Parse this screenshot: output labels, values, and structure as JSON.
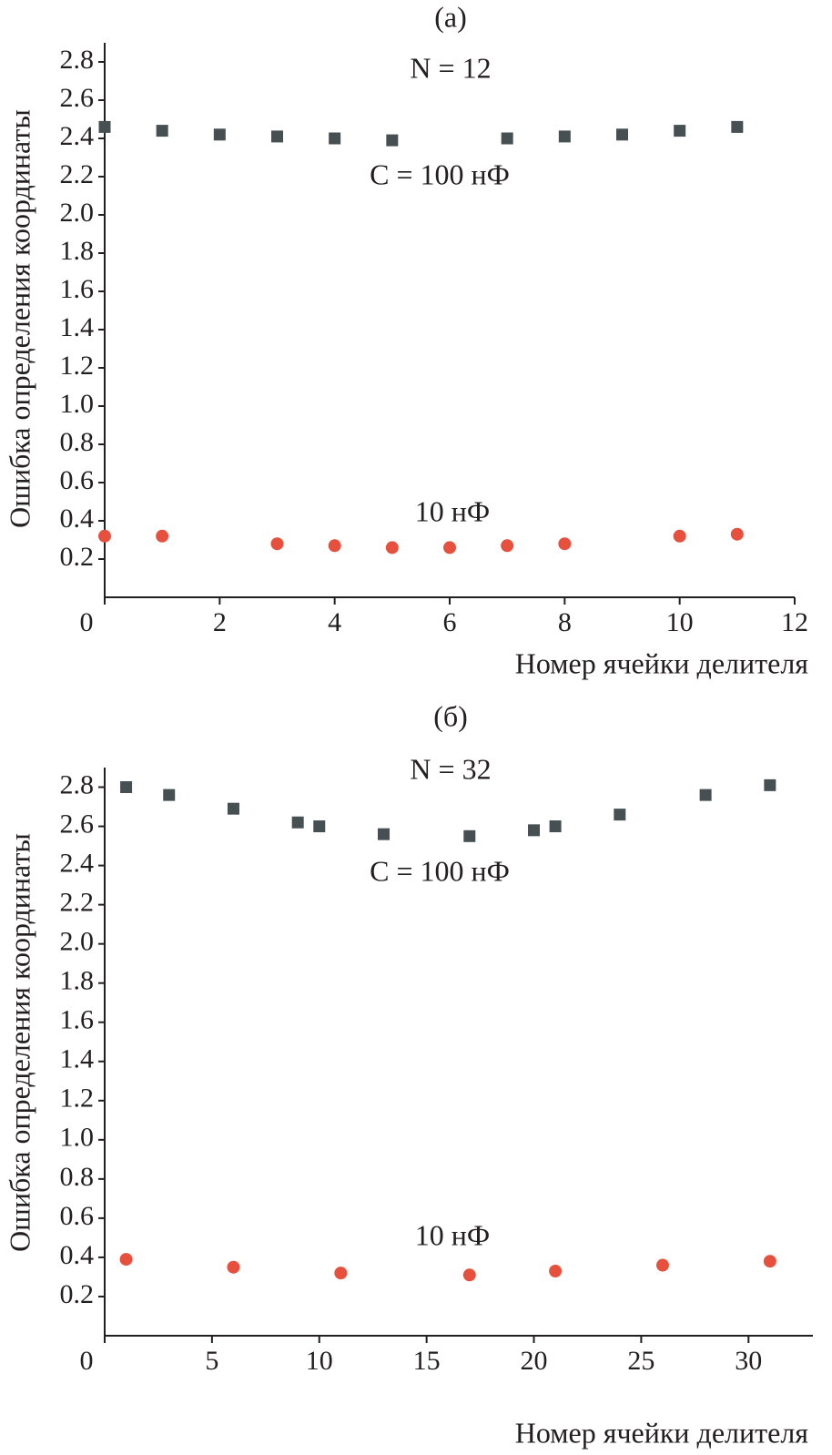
{
  "chart_data": [
    {
      "type": "scatter",
      "title": "(а)",
      "annotations": [
        "N = 12"
      ],
      "x_label": "Номер ячейки делителя",
      "y_label": "Ошибка определения координаты",
      "xlim": [
        0,
        12
      ],
      "xticks": [
        0,
        2,
        4,
        6,
        8,
        10,
        12
      ],
      "ylim": [
        0,
        2.9
      ],
      "yticks": [
        0.2,
        0.4,
        0.6,
        0.8,
        {
          "value": 1,
          "label": "1.0"
        },
        1.2,
        1.4,
        1.6,
        1.8,
        {
          "value": 2,
          "label": "2.0"
        },
        2.2,
        2.4,
        2.6,
        2.8
      ],
      "series": [
        {
          "name": "C = 100 нФ",
          "color": "#465052",
          "marker": "square",
          "x": [
            0,
            1,
            2,
            3,
            4,
            5,
            7,
            8,
            9,
            10,
            11
          ],
          "values": [
            2.46,
            2.44,
            2.42,
            2.41,
            2.4,
            2.39,
            2.4,
            2.41,
            2.42,
            2.44,
            2.46
          ]
        },
        {
          "name": "10 нФ",
          "color": "#e8503e",
          "marker": "circle",
          "x": [
            0,
            1,
            3,
            4,
            5,
            6,
            7,
            8,
            10,
            11
          ],
          "values": [
            0.32,
            0.32,
            0.28,
            0.27,
            0.26,
            0.26,
            0.27,
            0.28,
            0.32,
            0.33
          ]
        }
      ]
    },
    {
      "type": "scatter",
      "title": "(б)",
      "annotations": [
        "N = 32"
      ],
      "x_label": "Номер ячейки делителя",
      "y_label": "Ошибка определения координаты",
      "xlim": [
        0,
        33
      ],
      "xticks": [
        0,
        5,
        10,
        15,
        20,
        25,
        30
      ],
      "ylim": [
        0,
        2.9
      ],
      "yticks": [
        0.2,
        0.4,
        0.6,
        0.8,
        {
          "value": 1,
          "label": "1.0"
        },
        1.2,
        1.4,
        1.6,
        1.8,
        {
          "value": 2,
          "label": "2.0"
        },
        2.2,
        2.4,
        2.6,
        2.8
      ],
      "series": [
        {
          "name": "C = 100 нФ",
          "color": "#465052",
          "marker": "square",
          "x": [
            1,
            3,
            6,
            9,
            10,
            13,
            17,
            20,
            21,
            24,
            28,
            31
          ],
          "values": [
            2.8,
            2.76,
            2.69,
            2.62,
            2.6,
            2.56,
            2.55,
            2.58,
            2.6,
            2.66,
            2.76,
            2.81
          ]
        },
        {
          "name": "10 нФ",
          "color": "#e8503e",
          "marker": "circle",
          "x": [
            1,
            6,
            11,
            17,
            21,
            26,
            31
          ],
          "values": [
            0.39,
            0.35,
            0.32,
            0.31,
            0.33,
            0.36,
            0.38
          ]
        }
      ]
    }
  ]
}
